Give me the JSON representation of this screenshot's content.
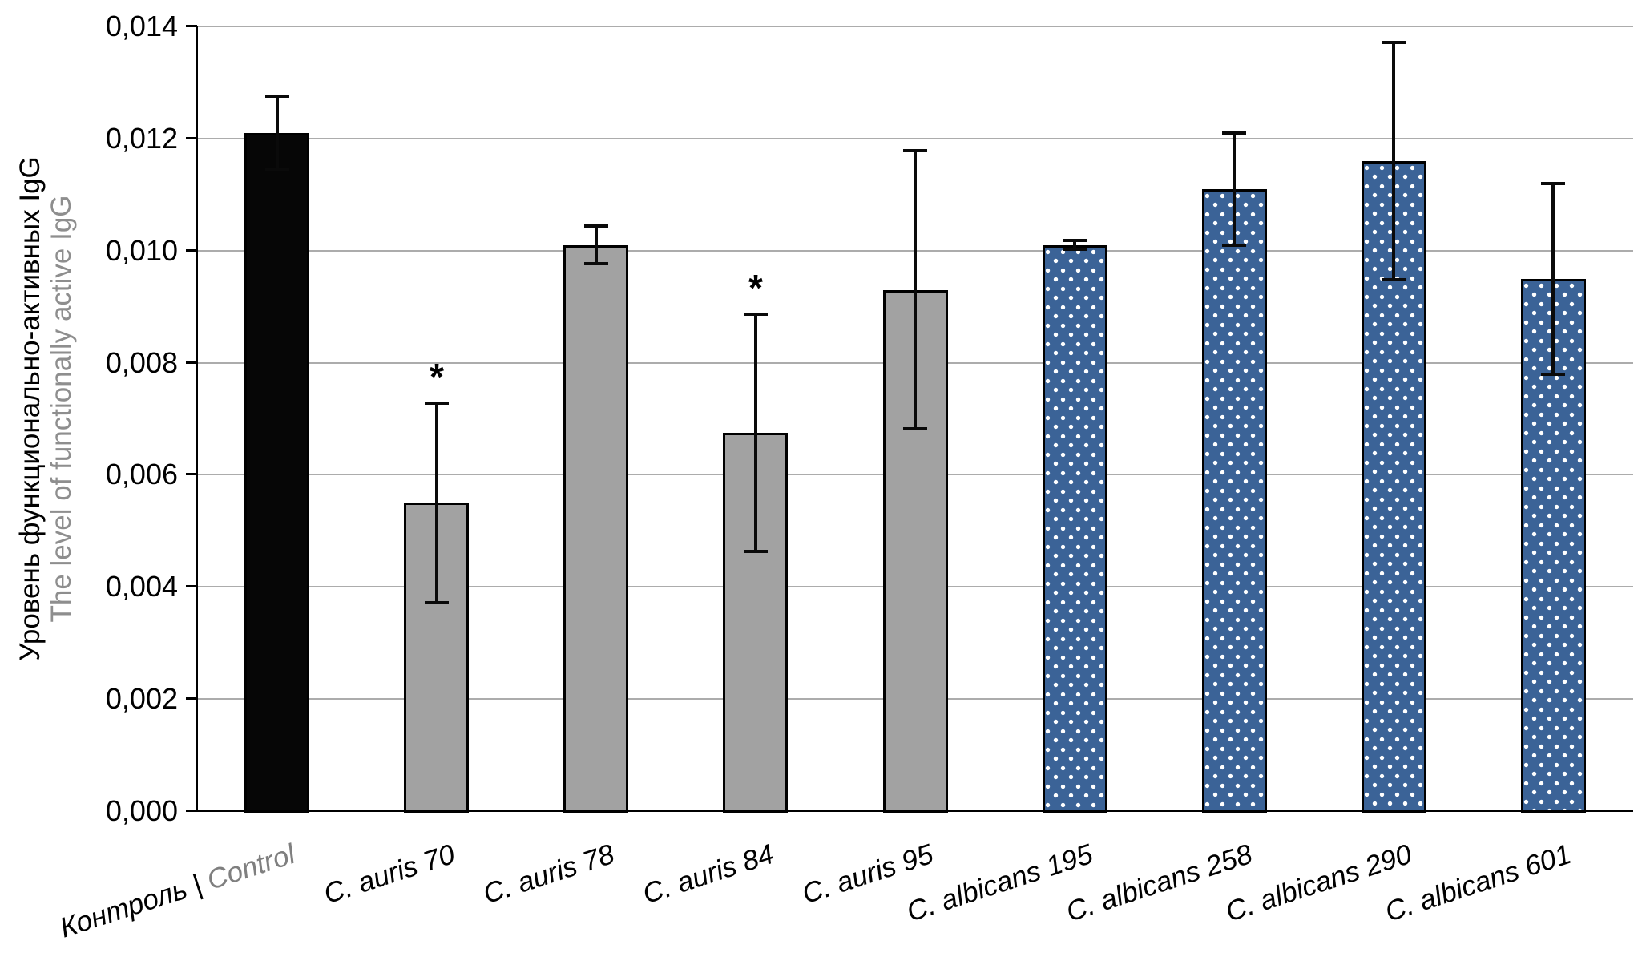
{
  "chart_data": {
    "type": "bar",
    "title": "",
    "ylabel_ru": "Уровень функционально-активных IgG",
    "ylabel_en": "The level of functionally active IgG",
    "xlabel": "",
    "decimal_separator": ",",
    "ylim": [
      0,
      0.014
    ],
    "y_tick_step": 0.002,
    "grid": true,
    "legend": false,
    "significance_symbol": "*",
    "y_ticks": [
      {
        "value": 0.0,
        "label": "0,000"
      },
      {
        "value": 0.002,
        "label": "0,002"
      },
      {
        "value": 0.004,
        "label": "0,004"
      },
      {
        "value": 0.006,
        "label": "0,006"
      },
      {
        "value": 0.008,
        "label": "0,008"
      },
      {
        "value": 0.01,
        "label": "0,010"
      },
      {
        "value": 0.012,
        "label": "0,012"
      },
      {
        "value": 0.014,
        "label": "0,014"
      }
    ],
    "categories": [
      "Контроль | Control",
      "C. auris 70",
      "C. auris 78",
      "C. auris 84",
      "C. auris 95",
      "C. albicans 195",
      "C. albicans 258",
      "C. albicans 290",
      "C. albicans 601"
    ],
    "series": [
      {
        "name": "Уровень функционально-активных IgG",
        "values": [
          0.0121,
          0.0055,
          0.0101,
          0.00675,
          0.0093,
          0.0101,
          0.0111,
          0.0116,
          0.0095
        ]
      }
    ],
    "bars": [
      {
        "category": "Контроль | Control",
        "label_parts": [
          {
            "text": "Контроль | ",
            "muted": false
          },
          {
            "text": "Control",
            "muted": true
          }
        ],
        "value": 0.0121,
        "error": 0.00065,
        "style": "black",
        "significant": false
      },
      {
        "category": "C. auris 70",
        "label_parts": [
          {
            "text": "C. auris 70",
            "muted": false
          }
        ],
        "value": 0.0055,
        "error": 0.00178,
        "style": "gray",
        "significant": true
      },
      {
        "category": "C. auris 78",
        "label_parts": [
          {
            "text": "C. auris 78",
            "muted": false
          }
        ],
        "value": 0.0101,
        "error": 0.00034,
        "style": "gray",
        "significant": false
      },
      {
        "category": "C. auris 84",
        "label_parts": [
          {
            "text": "C. auris 84",
            "muted": false
          }
        ],
        "value": 0.00675,
        "error": 0.00212,
        "style": "gray",
        "significant": true
      },
      {
        "category": "C. auris 95",
        "label_parts": [
          {
            "text": "C. auris 95",
            "muted": false
          }
        ],
        "value": 0.0093,
        "error": 0.00248,
        "style": "gray",
        "significant": false
      },
      {
        "category": "C. albicans 195",
        "label_parts": [
          {
            "text": "C. albicans 195",
            "muted": false
          }
        ],
        "value": 0.0101,
        "error": 8e-05,
        "style": "blue-dotted",
        "significant": false
      },
      {
        "category": "C. albicans 258",
        "label_parts": [
          {
            "text": "C. albicans 258",
            "muted": false
          }
        ],
        "value": 0.0111,
        "error": 0.001,
        "style": "blue-dotted",
        "significant": false
      },
      {
        "category": "C. albicans 290",
        "label_parts": [
          {
            "text": "C. albicans 290",
            "muted": false
          }
        ],
        "value": 0.0116,
        "error": 0.00212,
        "style": "blue-dotted",
        "significant": false
      },
      {
        "category": "C. albicans 601",
        "label_parts": [
          {
            "text": "C. albicans 601",
            "muted": false
          }
        ],
        "value": 0.0095,
        "error": 0.0017,
        "style": "blue-dotted",
        "significant": false
      }
    ],
    "colors": {
      "control_bar": "#060606",
      "c_auris_bar": "#A2A2A2",
      "c_albicans_bar": "#3B6397",
      "c_albicans_dots": "#FFFFFF",
      "bar_outline": "#000000",
      "error_bar": "#0A0A0A",
      "gridline": "#ACACAC",
      "axis": "#000000",
      "muted_label": "#7F7F7F",
      "secondary_title": "#8E8E8E",
      "background": "#FFFFFF"
    }
  }
}
